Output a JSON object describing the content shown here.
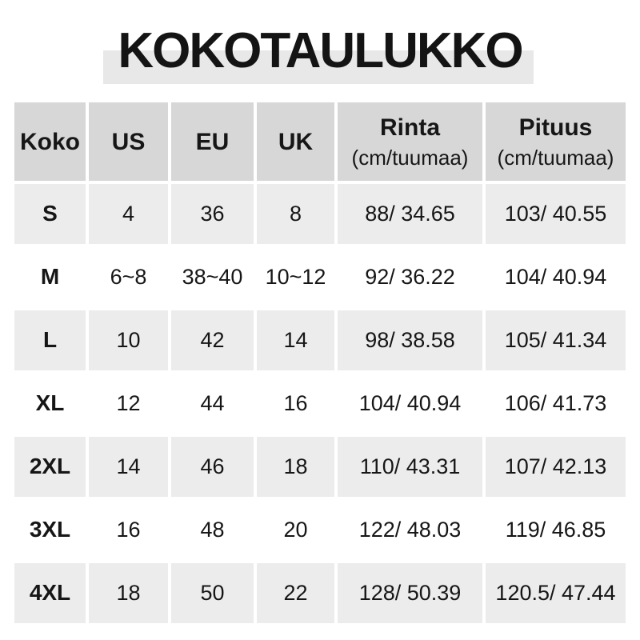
{
  "title": {
    "text": "KOKOTAULUKKO"
  },
  "colors": {
    "background": "#ffffff",
    "title_highlight_bg": "#e8e8e8",
    "header_cell_bg": "#d7d7d7",
    "striped_row_bg": "#ececec",
    "text": "#161616"
  },
  "chart_data": {
    "type": "table",
    "title": "KOKOTAULUKKO",
    "columns": [
      {
        "label": "Koko",
        "sublabel": ""
      },
      {
        "label": "US",
        "sublabel": ""
      },
      {
        "label": "EU",
        "sublabel": ""
      },
      {
        "label": "UK",
        "sublabel": ""
      },
      {
        "label": "Rinta",
        "sublabel": "(cm/tuumaa)"
      },
      {
        "label": "Pituus",
        "sublabel": "(cm/tuumaa)"
      }
    ],
    "rows": [
      [
        "S",
        "4",
        "36",
        "8",
        "88/ 34.65",
        "103/ 40.55"
      ],
      [
        "M",
        "6~8",
        "38~40",
        "10~12",
        "92/ 36.22",
        "104/ 40.94"
      ],
      [
        "L",
        "10",
        "42",
        "14",
        "98/ 38.58",
        "105/ 41.34"
      ],
      [
        "XL",
        "12",
        "44",
        "16",
        "104/ 40.94",
        "106/ 41.73"
      ],
      [
        "2XL",
        "14",
        "46",
        "18",
        "110/ 43.31",
        "107/ 42.13"
      ],
      [
        "3XL",
        "16",
        "48",
        "20",
        "122/ 48.03",
        "119/ 46.85"
      ],
      [
        "4XL",
        "18",
        "50",
        "22",
        "128/ 50.39",
        "120.5/ 47.44"
      ]
    ]
  }
}
